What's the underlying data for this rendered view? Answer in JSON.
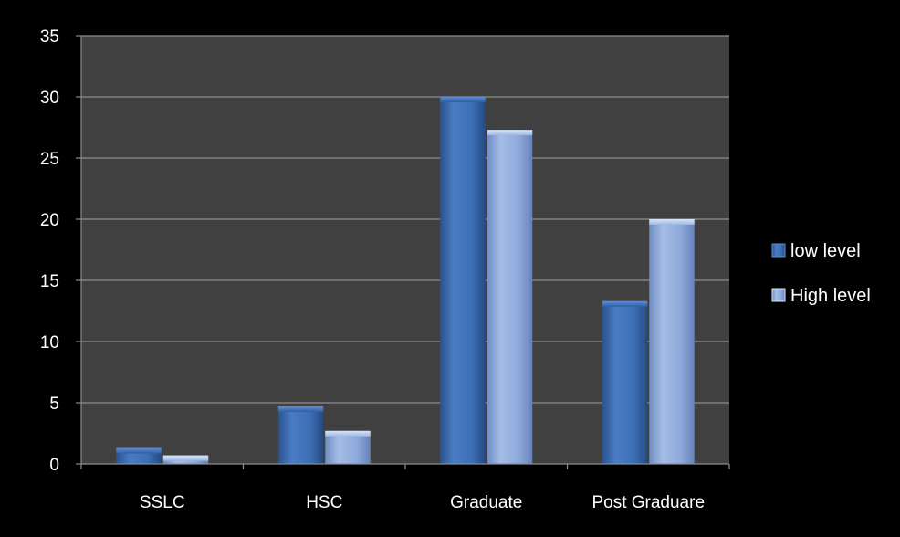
{
  "chart_data": {
    "type": "bar",
    "categories": [
      "SSLC",
      "HSC",
      "Graduate",
      "Post Graduare"
    ],
    "series": [
      {
        "name": "low level",
        "values": [
          1.3,
          4.7,
          30.0,
          13.3
        ],
        "color": "#3d6fb6"
      },
      {
        "name": "High level",
        "values": [
          0.7,
          2.7,
          27.3,
          20.0
        ],
        "color": "#8eaadb"
      }
    ],
    "title": "",
    "xlabel": "",
    "ylabel": "",
    "ylim": [
      0,
      35
    ],
    "yticks": [
      0,
      5,
      10,
      15,
      20,
      25,
      30,
      35
    ],
    "grid": true,
    "legend_position": "right",
    "plot_background": "#404040",
    "background": "#000000",
    "gridline_color": "#8c8c8c",
    "text_color": "#ffffff"
  }
}
